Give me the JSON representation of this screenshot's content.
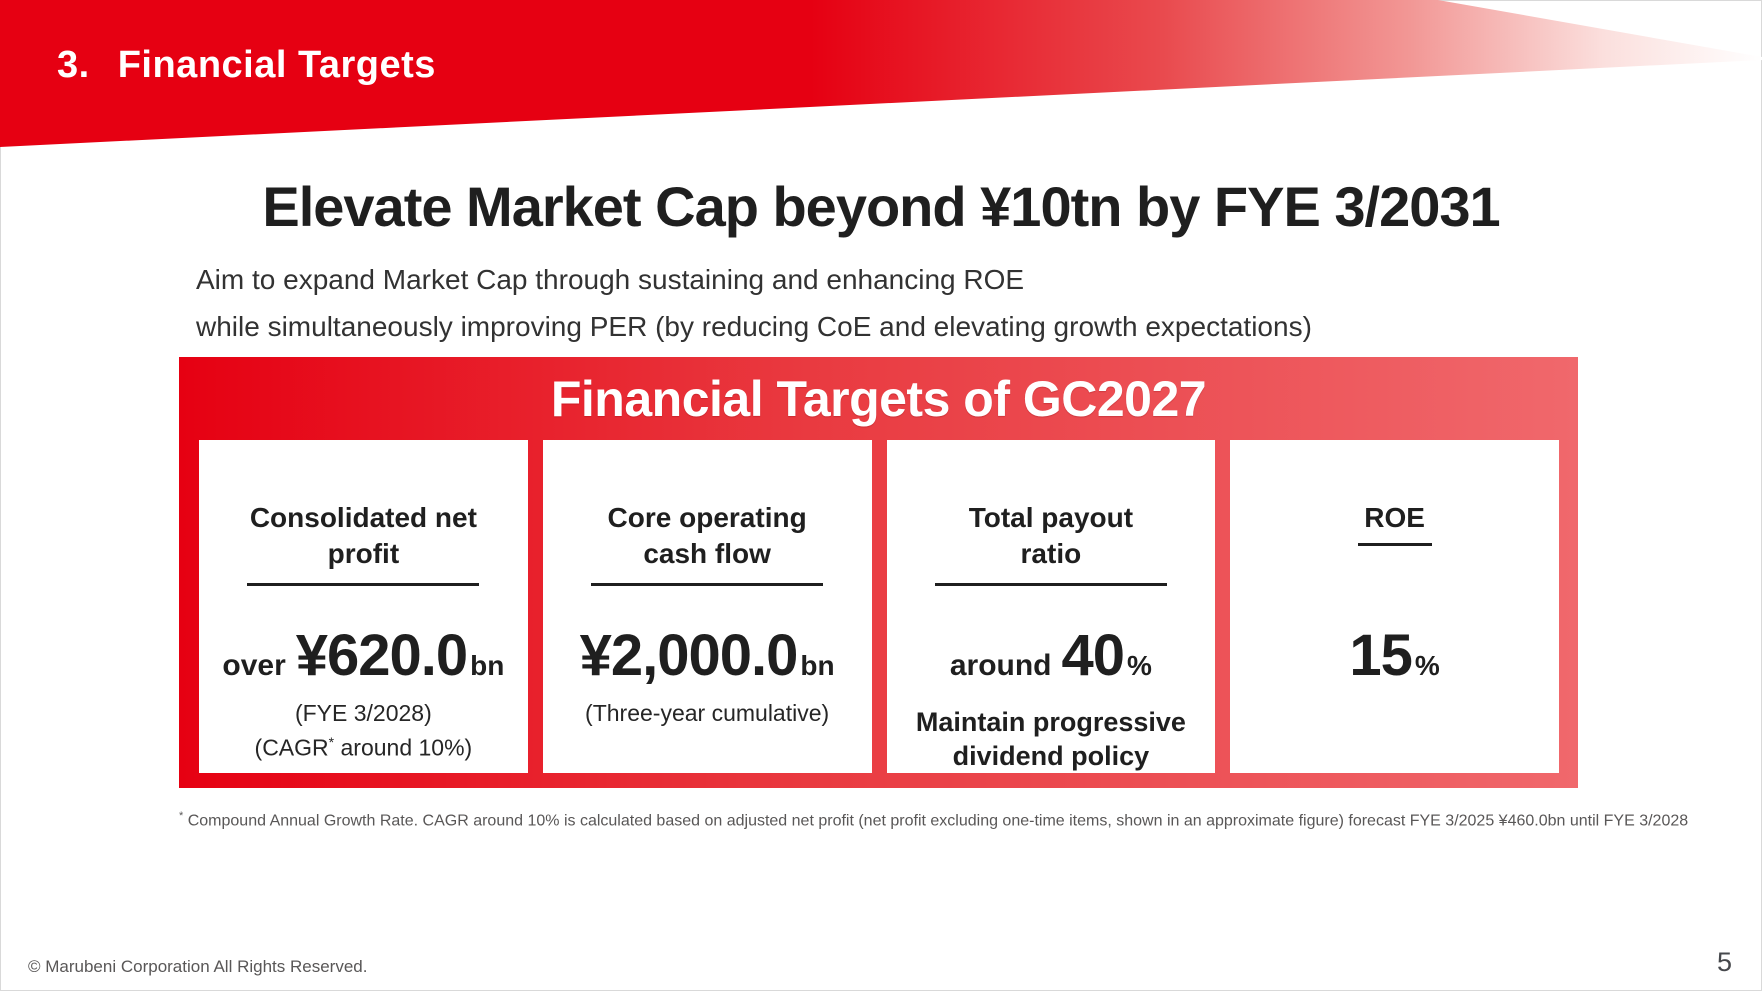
{
  "header": {
    "section_number": "3.",
    "section_title": "Financial Targets"
  },
  "title": "Elevate Market Cap beyond ¥10tn by FYE 3/2031",
  "subtitle": {
    "line1": "Aim to expand Market Cap through sustaining and enhancing ROE",
    "line2": "while simultaneously improving PER (by reducing CoE and elevating growth expectations)"
  },
  "targets_box": {
    "title": "Financial Targets of GC2027",
    "cards": [
      {
        "heading": "Consolidated net\nprofit",
        "value_prefix": "over",
        "value_big": "¥620.0",
        "value_suffix": "bn",
        "note1": "(FYE 3/2028)",
        "note2_pre": "(CAGR",
        "note2_sup": "*",
        "note2_post": " around 10%)"
      },
      {
        "heading": "Core operating\ncash flow",
        "value_prefix": "",
        "value_big": "¥2,000.0",
        "value_suffix": "bn",
        "note1": "(Three-year cumulative)"
      },
      {
        "heading": "Total payout\nratio",
        "value_prefix": "around",
        "value_big": "40",
        "value_suffix": "%",
        "note_bold": "Maintain progressive\ndividend policy"
      },
      {
        "heading": "ROE",
        "value_prefix": "",
        "value_big": "15",
        "value_suffix": "%"
      }
    ]
  },
  "footnote": {
    "sup": "*",
    "text": " Compound Annual Growth Rate. CAGR around 10% is calculated based on adjusted net profit (net profit excluding one-time items, shown in an approximate figure) forecast FYE 3/2025 ¥460.0bn until FYE 3/2028"
  },
  "footer": {
    "copyright": "© Marubeni Corporation All Rights Reserved.",
    "page_number": "5"
  },
  "colors": {
    "brand_red": "#e60012",
    "box_gradient_end": "#f0686c",
    "text_dark": "#1f1f1f",
    "text_gray": "#595757"
  }
}
